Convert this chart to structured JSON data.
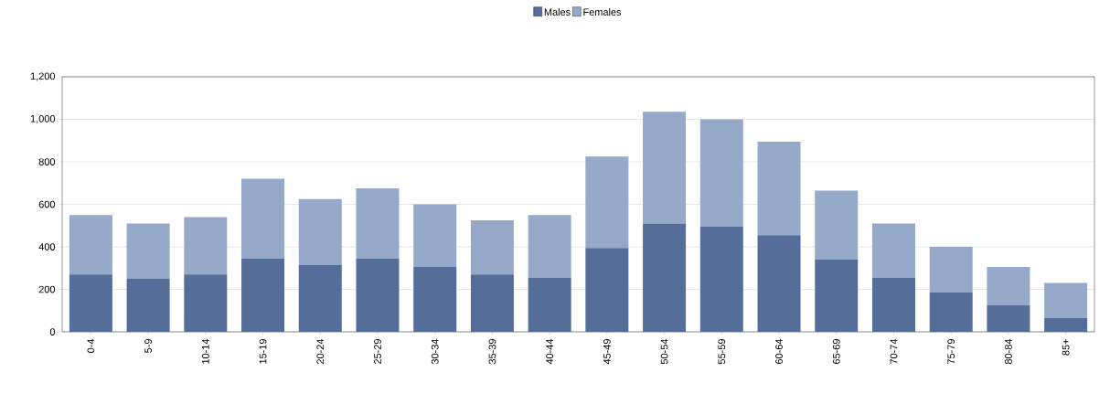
{
  "chart_data": {
    "type": "bar",
    "stacked": true,
    "legend": "top",
    "grid": "y",
    "categories": [
      "0-4",
      "5-9",
      "10-14",
      "15-19",
      "20-24",
      "25-29",
      "30-34",
      "35-39",
      "40-44",
      "45-49",
      "50-54",
      "55-59",
      "60-64",
      "65-69",
      "70-74",
      "75-79",
      "80-84",
      "85+"
    ],
    "series": [
      {
        "name": "Males",
        "color": "#546e99",
        "values": [
          270,
          250,
          270,
          345,
          315,
          345,
          305,
          270,
          255,
          395,
          510,
          495,
          455,
          340,
          255,
          185,
          125,
          65
        ]
      },
      {
        "name": "Females",
        "color": "#97a9c9",
        "values": [
          280,
          260,
          270,
          375,
          310,
          330,
          295,
          255,
          295,
          430,
          525,
          505,
          440,
          325,
          255,
          215,
          180,
          165
        ]
      }
    ],
    "ylim": [
      0,
      1200
    ],
    "yticks": [
      {
        "value": 0,
        "label": "0"
      },
      {
        "value": 200,
        "label": "200"
      },
      {
        "value": 400,
        "label": "400"
      },
      {
        "value": 600,
        "label": "600"
      },
      {
        "value": 800,
        "label": "800"
      },
      {
        "value": 1000,
        "label": "1,000"
      },
      {
        "value": 1200,
        "label": "1,200"
      }
    ]
  }
}
